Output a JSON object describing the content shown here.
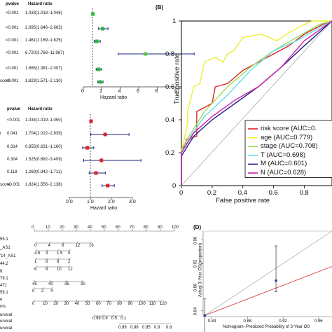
{
  "forest_a": {
    "header": {
      "pvalue": "pvalue",
      "hr": "Hazard ratio"
    },
    "labels": [
      "",
      "",
      "",
      "",
      "",
      "score"
    ],
    "rows": [
      {
        "p": "<0.001",
        "hr": "1.033(1.018−1.048)",
        "est": 1.033,
        "lo": 1.018,
        "hi": 1.048,
        "color": "#22bb33"
      },
      {
        "p": "<0.001",
        "hr": "2.095(1.646−2.663)",
        "est": 2.095,
        "lo": 1.646,
        "hi": 2.663,
        "color": "#22bb33"
      },
      {
        "p": "<0.001",
        "hr": "1.461(1.169−1.825)",
        "est": 1.461,
        "lo": 1.169,
        "hi": 1.825,
        "color": "#22bb33"
      },
      {
        "p": "<0.001",
        "hr": "6.720(3.768−11.987)",
        "est": 6.72,
        "lo": 3.768,
        "hi": 11.987,
        "color": "#55cc44"
      },
      {
        "p": "<0.001",
        "hr": "1.665(1.381−2.007)",
        "est": 1.665,
        "lo": 1.381,
        "hi": 2.007,
        "color": "#22bb33"
      },
      {
        "p": "<0.001",
        "hr": "1.829(1.571−2.130)",
        "est": 1.829,
        "lo": 1.571,
        "hi": 2.13,
        "color": "#22bb33"
      }
    ],
    "ticks": [
      "0",
      "2",
      "4",
      "6",
      "8",
      "10"
    ],
    "xlabel": "Hazard ratio"
  },
  "forest_b": {
    "header": {
      "pvalue": "pvalue",
      "hr": "Hazard ratio"
    },
    "labels": [
      "",
      "r",
      "",
      "",
      "",
      "score"
    ],
    "rows": [
      {
        "p": "<0.001",
        "hr": "1.034(1.019−1.050)",
        "est": 1.034,
        "lo": 1.019,
        "hi": 1.05
      },
      {
        "p": "0.041",
        "hr": "1.704(1.022−2.839)",
        "est": 1.704,
        "lo": 1.022,
        "hi": 2.839
      },
      {
        "p": "0.314",
        "hr": "0.855(0.631−1.160)",
        "est": 0.855,
        "lo": 0.631,
        "hi": 1.16
      },
      {
        "p": "0.304",
        "hr": "1.525(0.682−3.409)",
        "est": 1.525,
        "lo": 0.682,
        "hi": 3.409
      },
      {
        "p": "0.118",
        "hr": "1.269(0.942−1.711)",
        "est": 1.269,
        "lo": 0.942,
        "hi": 1.711
      },
      {
        "p": "<0.001",
        "hr": "1.824(1.556−2.138)",
        "est": 1.824,
        "lo": 1.556,
        "hi": 2.138
      }
    ],
    "ticks": [
      "0.0",
      "1.0",
      "2.0",
      "3.0"
    ],
    "xlabel": "Hazard ratio"
  },
  "roc": {
    "panel_label": "(B)",
    "ylabel": "True positive rate",
    "xlabel": "False positive rate",
    "ticks": [
      "0",
      "0.2",
      "0.4",
      "0.6",
      "0.8"
    ],
    "yticks": [
      "0",
      "0.2",
      "0.4",
      "0.6",
      "0.8",
      "1"
    ],
    "legend": [
      {
        "label": "risk score (AUC=0.",
        "color": "#dd2222"
      },
      {
        "label": "age (AUC=0.779)",
        "color": "#eeee33"
      },
      {
        "label": "stage (AUC=0.708)",
        "color": "#99dd55"
      },
      {
        "label": "T (AUC=0.698)",
        "color": "#66ddee"
      },
      {
        "label": "M (AUC=0.601)",
        "color": "#222288"
      },
      {
        "label": "N (AUC=0.628)",
        "color": "#cc22aa"
      }
    ]
  },
  "nomogram": {
    "labels": [
      "55.1",
      "_AS1",
      "'14_AS1",
      "44.2",
      "ft",
      "79.1",
      "471",
      "58.1",
      "e",
      "nts",
      "urvival",
      "urvival",
      "urvival"
    ],
    "points_ticks": [
      "0",
      "10",
      "20",
      "30",
      "40",
      "50",
      "60",
      "70",
      "80",
      "90",
      "100"
    ],
    "row_ticks": [
      [
        "0",
        "4",
        "8",
        "12",
        "16"
      ],
      [
        "4.5",
        "3",
        "1.5",
        "0"
      ],
      [
        "1",
        "6",
        "8",
        "2"
      ],
      [
        "6",
        "8",
        "10",
        "12"
      ],
      [
        "45",
        "40",
        "35",
        "30"
      ],
      [
        "0",
        "2",
        "4"
      ],
      [
        "0",
        "10",
        "20",
        "30",
        "40",
        "50",
        "60",
        "70",
        "80",
        "90",
        "100",
        "110",
        "120"
      ],
      [
        "0.99",
        "0.9",
        "0.5",
        "0.1"
      ]
    ],
    "bottom_ticks": [
      "0.99",
      "0.98",
      "0.95",
      "0.9",
      "0.8"
    ]
  },
  "calibration": {
    "panel_label": "(D)",
    "ylabel": "Actual 3-Year OS(proportion)",
    "xlabel": "Nomogram−Predicted Probability of 3-Year OS",
    "xticks": [
      "0.84",
      "0.88",
      "0.92",
      "0.96"
    ],
    "yticks": [
      "0.84",
      "0.88",
      "0.92",
      "0.96"
    ],
    "points": [
      {
        "x": 0.832,
        "y": 0.832,
        "lo": 0.8,
        "hi": 0.86
      },
      {
        "x": 0.912,
        "y": 0.891,
        "lo": 0.872,
        "hi": 0.95
      }
    ],
    "line_color": "#dd4444"
  }
}
